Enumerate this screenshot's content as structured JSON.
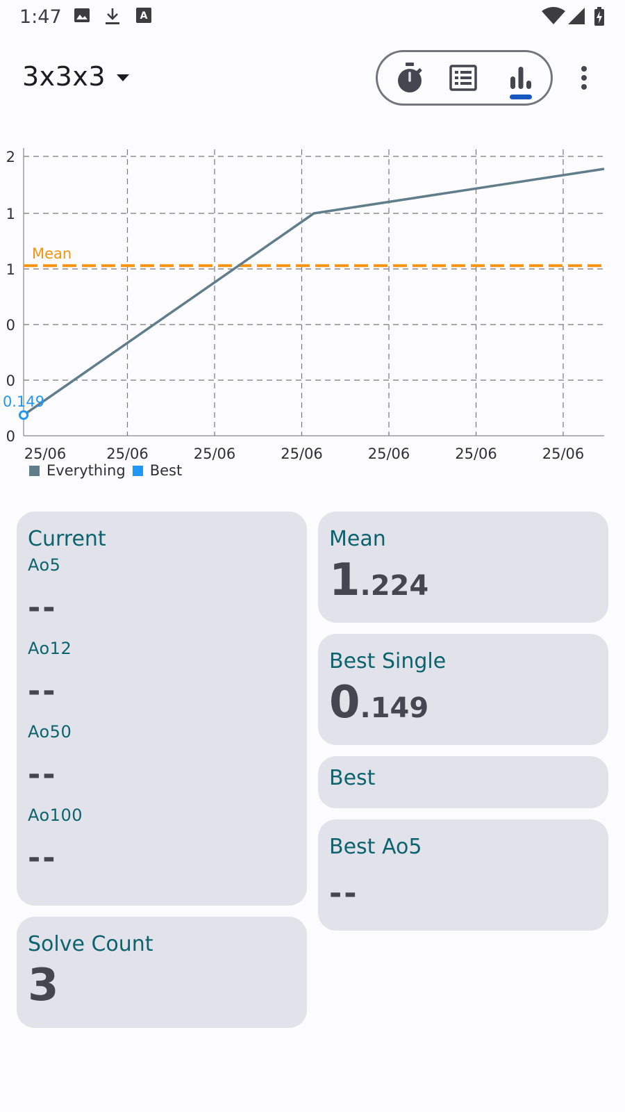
{
  "status_bar": {
    "time": "1:47",
    "icons": [
      "image-icon",
      "download-icon",
      "text-icon",
      "wifi-icon",
      "signal-icon",
      "battery-icon"
    ]
  },
  "toolbar": {
    "puzzle_label": "3x3x3",
    "nav": [
      {
        "name": "timer",
        "icon": "stopwatch-icon"
      },
      {
        "name": "history",
        "icon": "list-icon"
      },
      {
        "name": "statistics",
        "icon": "bar-chart-icon",
        "selected": true
      }
    ],
    "more_icon": "more-vert-icon"
  },
  "chart_data": {
    "type": "line",
    "x_tick_labels": [
      "25/06",
      "25/06",
      "25/06",
      "25/06",
      "25/06",
      "25/06",
      "25/06"
    ],
    "y_tick_labels": [
      "2",
      "1",
      "1",
      "0",
      "0",
      "0"
    ],
    "series": [
      {
        "name": "Everything",
        "color": "#607d8b",
        "points": [
          [
            0,
            0.149
          ],
          [
            5,
            1.6
          ],
          [
            10,
            1.92
          ]
        ]
      },
      {
        "name": "Best",
        "color": "#2196f3",
        "points": [
          [
            0,
            0.149
          ]
        ]
      }
    ],
    "mean_line": {
      "label": "Mean",
      "value": 1.224,
      "color": "#f7930f"
    },
    "best_point_label": "0.149",
    "ylim": [
      0,
      2.0
    ],
    "grid": true,
    "legend_position": "bottom-left"
  },
  "stats": {
    "current": {
      "title": "Current",
      "items": [
        {
          "label": "Ao5",
          "value": "--"
        },
        {
          "label": "Ao12",
          "value": "--"
        },
        {
          "label": "Ao50",
          "value": "--"
        },
        {
          "label": "Ao100",
          "value": "--"
        }
      ]
    },
    "mean": {
      "title": "Mean",
      "int": "1",
      "dec": ".224"
    },
    "best_single": {
      "title": "Best Single",
      "int": "0",
      "dec": ".149"
    },
    "best": {
      "title": "Best"
    },
    "best_ao5": {
      "title": "Best Ao5",
      "value": "--"
    },
    "solve_count": {
      "title": "Solve Count",
      "value": "3"
    }
  }
}
